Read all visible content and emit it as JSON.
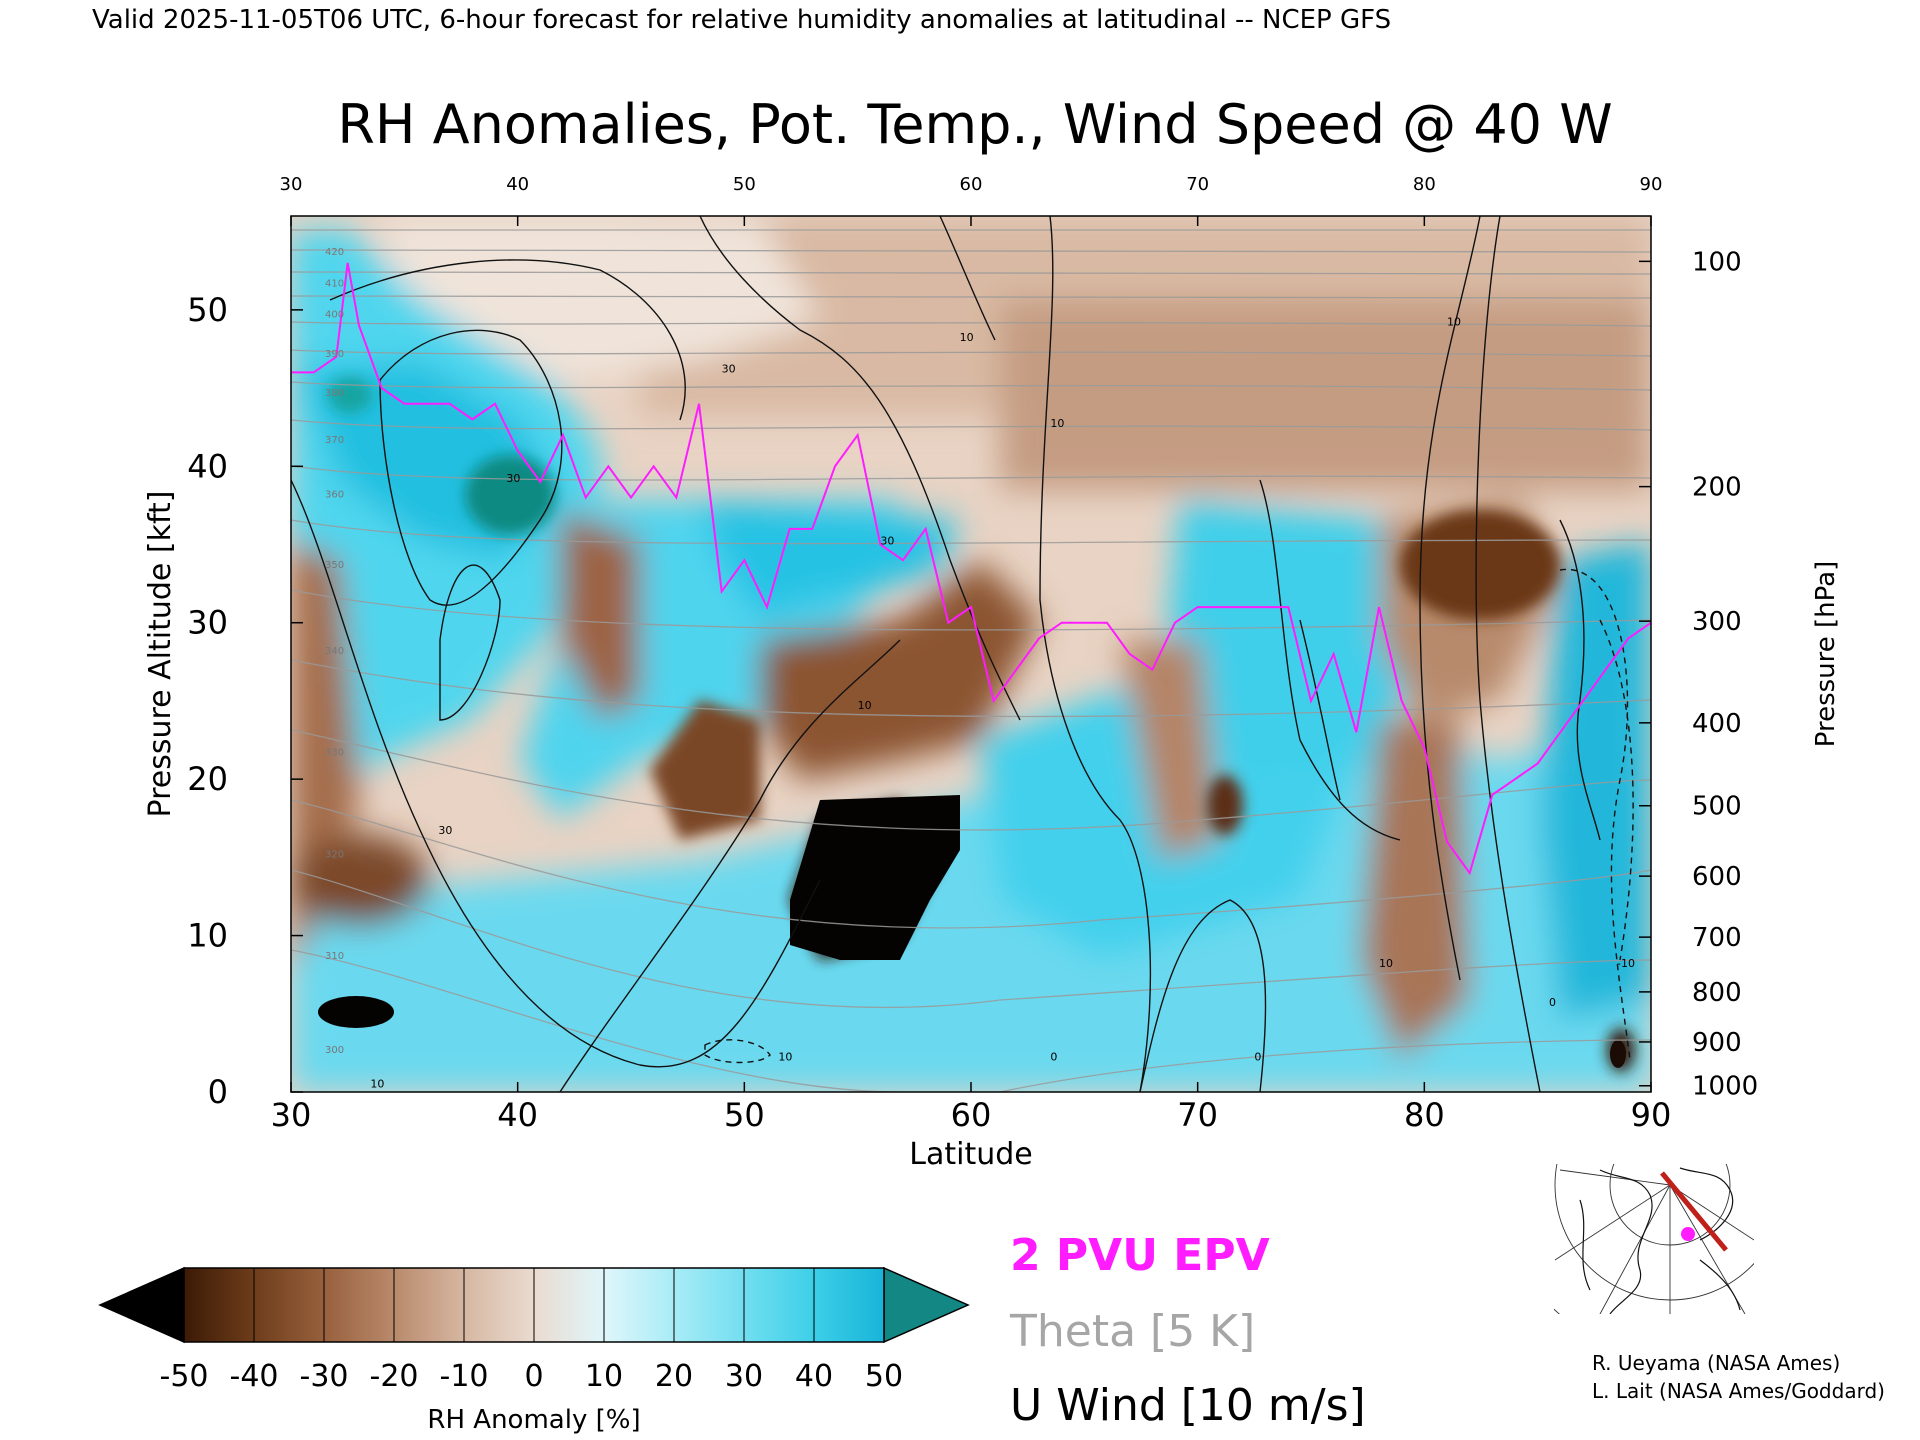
{
  "header": "Valid 2025-11-05T06 UTC, 6-hour forecast for relative humidity anomalies at latitudinal -- NCEP GFS",
  "chart_data": {
    "type": "heatmap",
    "title": "RH Anomalies, Pot. Temp., Wind Speed @ 40 W",
    "xlabel": "Latitude",
    "ylabel": "Pressure Altitude [kft]",
    "ylabel_right": "Pressure [hPa]",
    "xlim": [
      30,
      90
    ],
    "ylim": [
      0,
      56
    ],
    "x_ticks": [
      "30",
      "40",
      "50",
      "60",
      "70",
      "80",
      "90"
    ],
    "y_ticks": [
      "0",
      "10",
      "20",
      "30",
      "40",
      "50"
    ],
    "pressure_ticks": [
      {
        "label": "100",
        "kft": 53.1
      },
      {
        "label": "200",
        "kft": 38.7
      },
      {
        "label": "300",
        "kft": 30.1
      },
      {
        "label": "400",
        "kft": 23.6
      },
      {
        "label": "500",
        "kft": 18.3
      },
      {
        "label": "600",
        "kft": 13.8
      },
      {
        "label": "700",
        "kft": 9.9
      },
      {
        "label": "800",
        "kft": 6.4
      },
      {
        "label": "900",
        "kft": 3.2
      },
      {
        "label": "1000",
        "kft": 0.4
      }
    ],
    "colorbar": {
      "label": "RH Anomaly [%]",
      "ticks": [
        "-50",
        "-40",
        "-30",
        "-20",
        "-10",
        "0",
        "10",
        "20",
        "30",
        "40",
        "50"
      ],
      "colors": [
        "#000000",
        "#3c1a06",
        "#6e3d1b",
        "#98603d",
        "#b98a6c",
        "#d6b7a2",
        "#eadbd0",
        "#dff6fb",
        "#a8ecf6",
        "#72def0",
        "#3ccfe8",
        "#18b4d8",
        "#0b8fb3",
        "#138783"
      ]
    },
    "theta_labels": [
      {
        "label": "420",
        "lat": 31.5,
        "kft": 53.5
      },
      {
        "label": "410",
        "lat": 31.5,
        "kft": 51.5
      },
      {
        "label": "400",
        "lat": 31.5,
        "kft": 49.5
      },
      {
        "label": "390",
        "lat": 31.5,
        "kft": 47.0
      },
      {
        "label": "380",
        "lat": 31.5,
        "kft": 44.5
      },
      {
        "label": "370",
        "lat": 31.5,
        "kft": 41.5
      },
      {
        "label": "360",
        "lat": 31.5,
        "kft": 38.0
      },
      {
        "label": "350",
        "lat": 31.5,
        "kft": 33.5
      },
      {
        "label": "340",
        "lat": 31.5,
        "kft": 28.0
      },
      {
        "label": "330",
        "lat": 31.5,
        "kft": 21.5
      },
      {
        "label": "320",
        "lat": 31.5,
        "kft": 15.0
      },
      {
        "label": "310",
        "lat": 31.5,
        "kft": 8.5
      },
      {
        "label": "300",
        "lat": 31.5,
        "kft": 2.5
      }
    ],
    "epv_2pvu": {
      "lat": [
        30,
        31,
        32,
        32.5,
        33,
        34,
        35,
        36,
        37,
        38,
        39,
        40,
        41,
        42,
        43,
        44,
        45,
        46,
        47,
        48,
        49,
        50,
        51,
        52,
        53,
        54,
        55,
        56,
        57,
        58,
        59,
        60,
        61,
        62,
        63,
        64,
        65,
        66,
        67,
        68,
        69,
        70,
        71,
        72,
        73,
        74,
        75,
        76,
        77,
        78,
        79,
        80,
        81,
        82,
        83,
        84,
        85,
        86,
        87,
        88,
        89,
        90
      ],
      "kft": [
        46,
        46,
        47,
        53,
        49,
        45,
        44,
        44,
        44,
        43,
        44,
        41,
        39,
        42,
        38,
        40,
        38,
        40,
        38,
        44,
        32,
        34,
        31,
        36,
        36,
        40,
        42,
        35,
        34,
        36,
        30,
        31,
        25,
        27,
        29,
        30,
        30,
        30,
        28,
        27,
        30,
        31,
        31,
        31,
        31,
        31,
        25,
        28,
        23,
        31,
        25,
        22,
        16,
        14,
        19,
        20,
        21,
        23,
        25,
        27,
        29,
        30
      ]
    },
    "wind_labels": [
      {
        "label": "10",
        "lat": 59.5,
        "kft": 48.0
      },
      {
        "label": "10",
        "lat": 63.5,
        "kft": 42.5
      },
      {
        "label": "10",
        "lat": 81.0,
        "kft": 49.0
      },
      {
        "label": "30",
        "lat": 39.5,
        "kft": 39.0
      },
      {
        "label": "30",
        "lat": 49.0,
        "kft": 46.0
      },
      {
        "label": "30",
        "lat": 56.0,
        "kft": 35.0
      },
      {
        "label": "10",
        "lat": 55.0,
        "kft": 24.5
      },
      {
        "label": "30",
        "lat": 36.5,
        "kft": 16.5
      },
      {
        "label": "10",
        "lat": 51.5,
        "kft": 2.0
      },
      {
        "label": "10",
        "lat": 33.5,
        "kft": 0.3
      },
      {
        "label": "0",
        "lat": 63.5,
        "kft": 2.0
      },
      {
        "label": "0",
        "lat": 72.5,
        "kft": 2.0
      },
      {
        "label": "10",
        "lat": 78.0,
        "kft": 8.0
      },
      {
        "label": "0",
        "lat": 85.5,
        "kft": 5.5
      },
      {
        "label": "-10",
        "lat": 88.5,
        "kft": 8.0
      }
    ]
  },
  "legend": {
    "epv": {
      "text": "2 PVU EPV",
      "color": "#ff1cff"
    },
    "theta": {
      "text": "Theta [5 K]",
      "color": "#a0a0a0"
    },
    "wind": {
      "text": "U Wind [10 m/s]",
      "color": "#000000"
    }
  },
  "credits": [
    "R. Ueyama (NASA Ames)",
    "L. Lait (NASA Ames/Goddard)"
  ],
  "inset_map": "inset-map-icon"
}
